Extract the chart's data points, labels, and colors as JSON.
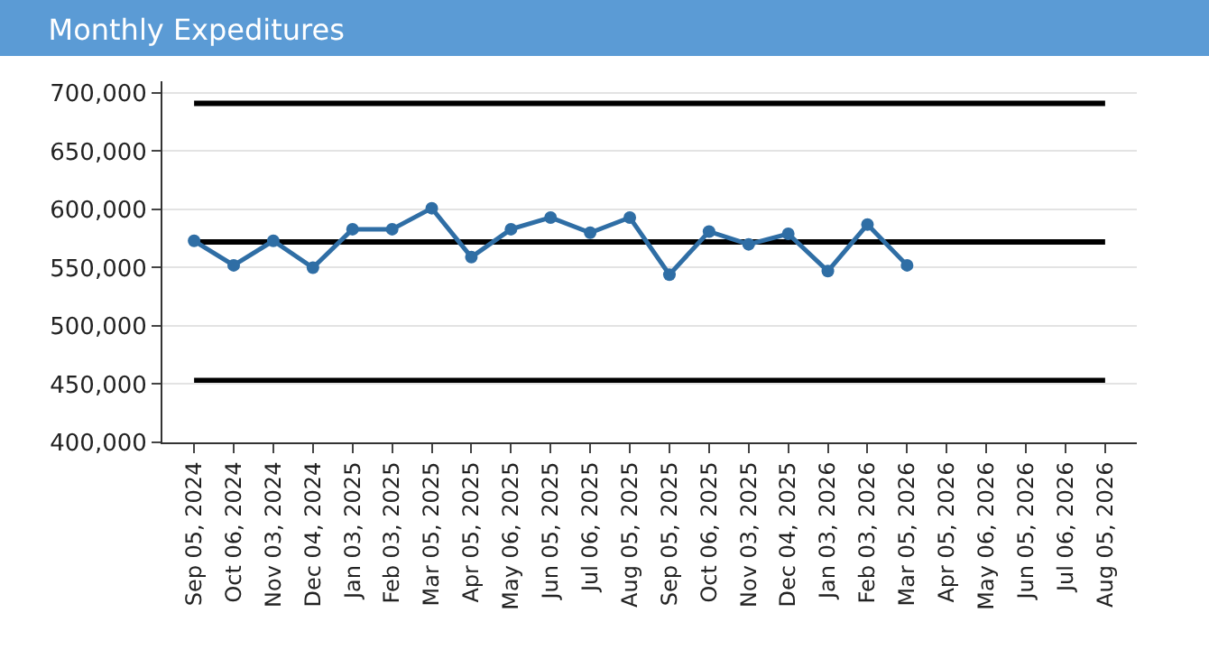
{
  "chart_data": {
    "type": "line",
    "title": "Monthly Expeditures",
    "categories": [
      "Sep 05, 2024",
      "Oct 06, 2024",
      "Nov 03, 2024",
      "Dec 04, 2024",
      "Jan 03, 2025",
      "Feb 03, 2025",
      "Mar 05, 2025",
      "Apr 05, 2025",
      "May 06, 2025",
      "Jun 05, 2025",
      "Jul 06, 2025",
      "Aug 05, 2025",
      "Sep 05, 2025",
      "Oct 06, 2025",
      "Nov 03, 2025",
      "Dec 04, 2025",
      "Jan 03, 2026",
      "Feb 03, 2026",
      "Mar 05, 2026",
      "Apr 05, 2026",
      "May 06, 2026",
      "Jun 05, 2026",
      "Jul 06, 2026",
      "Aug 05, 2026"
    ],
    "series": [
      {
        "color": "#2f6ea5",
        "values": [
          573000,
          552000,
          573000,
          550000,
          583000,
          583000,
          601000,
          559000,
          583000,
          593000,
          580000,
          593000,
          544000,
          581000,
          570000,
          579000,
          547000,
          587000,
          552000,
          null,
          null,
          null,
          null,
          null
        ]
      }
    ],
    "ylim": [
      400000,
      710000
    ],
    "yticks": [
      {
        "value": 400000,
        "label": "400,000"
      },
      {
        "value": 450000,
        "label": "450,000"
      },
      {
        "value": 500000,
        "label": "500,000"
      },
      {
        "value": 550000,
        "label": "550,000"
      },
      {
        "value": 600000,
        "label": "600,000"
      },
      {
        "value": 650000,
        "label": "650,000"
      },
      {
        "value": 700000,
        "label": "700,000"
      }
    ],
    "ref_lines": [
      {
        "axis": "y",
        "value": 691000,
        "color": "#000000"
      },
      {
        "axis": "y",
        "value": 572000,
        "color": "#000000"
      },
      {
        "axis": "y",
        "value": 453000,
        "color": "#000000"
      }
    ],
    "grid": "y",
    "marker": "circle",
    "line_style": "solid",
    "legend": false
  }
}
